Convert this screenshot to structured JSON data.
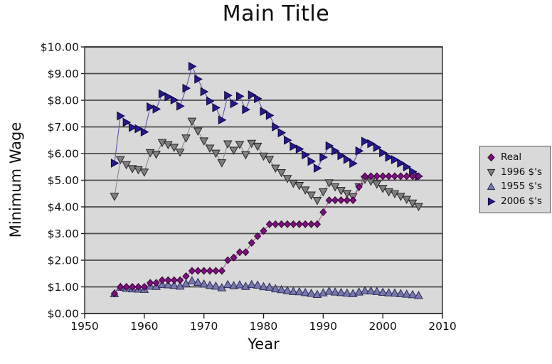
{
  "chart_data": {
    "type": "line",
    "title": "Main Title",
    "xlabel": "Year",
    "ylabel": "Minimum Wage",
    "x_range": [
      1950,
      2010
    ],
    "y_range": [
      0,
      10
    ],
    "x_ticks": [
      "1950",
      "1960",
      "1970",
      "1980",
      "1990",
      "2000",
      "2010"
    ],
    "y_ticks": [
      "$0.00",
      "$1.00",
      "$2.00",
      "$3.00",
      "$4.00",
      "$5.00",
      "$6.00",
      "$7.00",
      "$8.00",
      "$9.00",
      "$10.00"
    ],
    "grid": "horizontal",
    "legend_position": "center-right",
    "colors": {
      "plot_bg": "#d9d9d9",
      "grid": "#4d4d4d",
      "axis": "#262626",
      "text": "#111111",
      "legend_bg": "#d9d9d9",
      "legend_border": "#555555"
    },
    "years": [
      1955,
      1956,
      1957,
      1958,
      1959,
      1960,
      1961,
      1962,
      1963,
      1964,
      1965,
      1966,
      1967,
      1968,
      1969,
      1970,
      1971,
      1972,
      1973,
      1974,
      1975,
      1976,
      1977,
      1978,
      1979,
      1980,
      1981,
      1982,
      1983,
      1984,
      1985,
      1986,
      1987,
      1988,
      1989,
      1990,
      1991,
      1992,
      1993,
      1994,
      1995,
      1996,
      1997,
      1998,
      1999,
      2000,
      2001,
      2002,
      2003,
      2004,
      2005,
      2006
    ],
    "series": [
      {
        "name": "Real",
        "marker": "diamond",
        "marker_color": "#7b0f80",
        "marker_edge": "#33052e",
        "line_color": "#b25597",
        "values": [
          0.75,
          1.0,
          1.0,
          1.0,
          1.0,
          1.0,
          1.15,
          1.15,
          1.25,
          1.25,
          1.25,
          1.25,
          1.4,
          1.6,
          1.6,
          1.6,
          1.6,
          1.6,
          1.6,
          2.0,
          2.1,
          2.3,
          2.3,
          2.65,
          2.9,
          3.1,
          3.35,
          3.35,
          3.35,
          3.35,
          3.35,
          3.35,
          3.35,
          3.35,
          3.35,
          3.8,
          4.25,
          4.25,
          4.25,
          4.25,
          4.25,
          4.75,
          5.15,
          5.15,
          5.15,
          5.15,
          5.15,
          5.15,
          5.15,
          5.15,
          5.15,
          5.15
        ]
      },
      {
        "name": "1996 $'s",
        "marker": "triangle-down",
        "marker_color": "#7f7f7f",
        "marker_edge": "#262626",
        "line_color": "#8c8c8c",
        "values": [
          4.39,
          5.77,
          5.58,
          5.43,
          5.39,
          5.3,
          6.03,
          5.97,
          6.41,
          6.33,
          6.23,
          6.05,
          6.58,
          7.21,
          6.84,
          6.47,
          6.2,
          6.01,
          5.65,
          6.36,
          6.12,
          6.34,
          5.95,
          6.38,
          6.27,
          5.9,
          5.78,
          5.45,
          5.28,
          5.06,
          4.88,
          4.8,
          4.63,
          4.44,
          4.24,
          4.56,
          4.9,
          4.75,
          4.61,
          4.5,
          4.38,
          4.75,
          5.03,
          4.96,
          4.85,
          4.69,
          4.56,
          4.49,
          4.39,
          4.28,
          4.14,
          4.01
        ]
      },
      {
        "name": "1955 $'s",
        "marker": "triangle-up",
        "marker_color": "#7878ad",
        "marker_edge": "#2b2b59",
        "line_color": "#9494bd",
        "values": [
          0.75,
          0.99,
          0.95,
          0.93,
          0.92,
          0.91,
          1.03,
          1.02,
          1.09,
          1.08,
          1.06,
          1.03,
          1.12,
          1.23,
          1.17,
          1.11,
          1.06,
          1.03,
          0.97,
          1.09,
          1.05,
          1.08,
          1.02,
          1.09,
          1.07,
          1.01,
          0.99,
          0.93,
          0.9,
          0.86,
          0.83,
          0.82,
          0.79,
          0.76,
          0.72,
          0.78,
          0.84,
          0.81,
          0.79,
          0.77,
          0.75,
          0.81,
          0.86,
          0.85,
          0.83,
          0.8,
          0.78,
          0.77,
          0.75,
          0.73,
          0.71,
          0.68
        ]
      },
      {
        "name": "2006 $'s",
        "marker": "triangle-right",
        "marker_color": "#251a8c",
        "marker_edge": "#0d0640",
        "line_color": "#6357ad",
        "values": [
          5.64,
          7.41,
          7.17,
          6.98,
          6.93,
          6.81,
          7.75,
          7.67,
          8.24,
          8.13,
          8.01,
          7.78,
          8.45,
          9.27,
          8.79,
          8.32,
          7.97,
          7.72,
          7.26,
          8.18,
          7.87,
          8.15,
          7.65,
          8.2,
          8.06,
          7.58,
          7.43,
          7.0,
          6.78,
          6.5,
          6.27,
          6.17,
          5.95,
          5.71,
          5.45,
          5.86,
          6.29,
          6.1,
          5.92,
          5.78,
          5.63,
          6.1,
          6.46,
          6.37,
          6.23,
          6.03,
          5.86,
          5.77,
          5.64,
          5.5,
          5.32,
          5.15
        ]
      }
    ]
  }
}
